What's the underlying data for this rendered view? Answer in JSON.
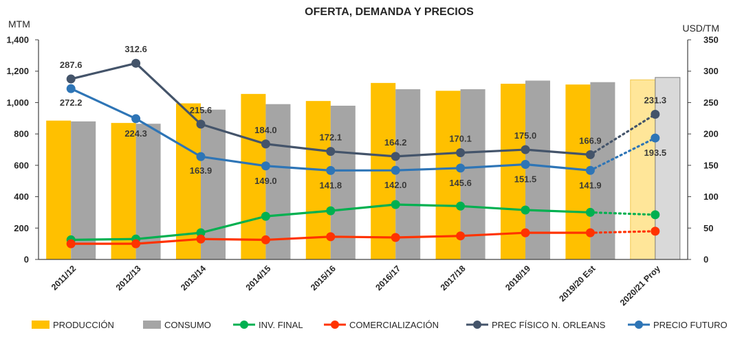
{
  "chart_data": {
    "type": "bar",
    "title": "OFERTA, DEMANDA Y PRECIOS",
    "ylabel_left": "MTM",
    "ylabel_right": "USD/TM",
    "ylim_left": [
      0,
      1400
    ],
    "ylim_right": [
      0,
      350
    ],
    "yticks_left": [
      "0",
      "200",
      "400",
      "600",
      "800",
      "1,000",
      "1,200",
      "1,400"
    ],
    "yticks_right": [
      "0",
      "50",
      "100",
      "150",
      "200",
      "250",
      "300",
      "350"
    ],
    "categories": [
      "2011/12",
      "2012/13",
      "2013/14",
      "2014/15",
      "2015/16",
      "2016/17",
      "2017/18",
      "2018/19",
      "2019/20 Est",
      "2020/21 Proy"
    ],
    "projected_index": 9,
    "legend_position": "bottom",
    "series": [
      {
        "name": "PRODUCCIÓN",
        "type": "bar",
        "axis": "left",
        "color": "#FFC000",
        "projected_color": "#FFE699",
        "values": [
          885,
          870,
          995,
          1055,
          1010,
          1125,
          1075,
          1120,
          1115,
          1145
        ]
      },
      {
        "name": "CONSUMO",
        "type": "bar",
        "axis": "left",
        "color": "#A5A5A5",
        "projected_color": "#D9D9D9",
        "values": [
          880,
          865,
          955,
          990,
          980,
          1085,
          1085,
          1140,
          1130,
          1160
        ]
      },
      {
        "name": "INV. FINAL",
        "type": "line",
        "axis": "left",
        "color": "#00B050",
        "values": [
          125,
          130,
          170,
          275,
          310,
          350,
          340,
          315,
          300,
          285
        ]
      },
      {
        "name": "COMERCIALIZACIÓN",
        "type": "line",
        "axis": "left",
        "color": "#FF3300",
        "values": [
          100,
          100,
          130,
          125,
          145,
          140,
          150,
          170,
          170,
          180
        ]
      },
      {
        "name": "PREC FÍSICO N. ORLEANS",
        "type": "line",
        "axis": "right",
        "color": "#44546A",
        "values": [
          287.6,
          312.6,
          215.6,
          184.0,
          172.1,
          164.2,
          170.1,
          175.0,
          166.9,
          231.3
        ],
        "labels": [
          "287.6",
          "312.6",
          "215.6",
          "184.0",
          "172.1",
          "164.2",
          "170.1",
          "175.0",
          "166.9",
          "231.3"
        ]
      },
      {
        "name": "PRECIO FUTURO",
        "type": "line",
        "axis": "right",
        "color": "#2E75B6",
        "values": [
          272.2,
          224.3,
          163.9,
          149.0,
          141.8,
          142.0,
          145.6,
          151.5,
          141.9,
          193.5
        ],
        "labels": [
          "272.2",
          "224.3",
          "163.9",
          "149.0",
          "141.8",
          "142.0",
          "145.6",
          "151.5",
          "141.9",
          "193.5"
        ]
      }
    ]
  }
}
